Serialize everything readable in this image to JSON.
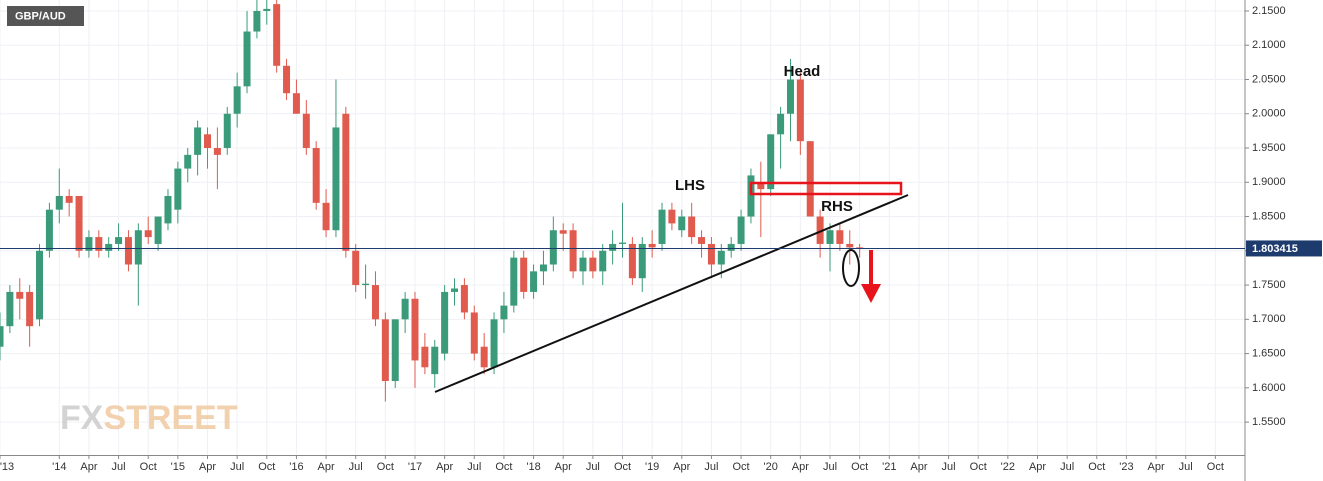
{
  "chart_data": {
    "type": "candlestick",
    "title": "GBP/AUD",
    "logo": [
      "FX",
      "STREET"
    ],
    "annotations": [
      "Head",
      "LHS",
      "RHS"
    ],
    "last_price": 1.803415,
    "up_color": "#3a9a7a",
    "down_color": "#e05a4e",
    "grid": true,
    "x": [
      "2013-07",
      "2013-08",
      "2013-09",
      "2013-10",
      "2013-11",
      "2013-12",
      "2014-01",
      "2014-02",
      "2014-03",
      "2014-04",
      "2014-05",
      "2014-06",
      "2014-07",
      "2014-08",
      "2014-09",
      "2014-10",
      "2014-11",
      "2014-12",
      "2015-01",
      "2015-02",
      "2015-03",
      "2015-04",
      "2015-05",
      "2015-06",
      "2015-07",
      "2015-08",
      "2015-09",
      "2015-10",
      "2015-11",
      "2015-12",
      "2016-01",
      "2016-02",
      "2016-03",
      "2016-04",
      "2016-05",
      "2016-06",
      "2016-07",
      "2016-08",
      "2016-09",
      "2016-10",
      "2016-11",
      "2016-12",
      "2017-01",
      "2017-02",
      "2017-03",
      "2017-04",
      "2017-05",
      "2017-06",
      "2017-07",
      "2017-08",
      "2017-09",
      "2017-10",
      "2017-11",
      "2017-12",
      "2018-01",
      "2018-02",
      "2018-03",
      "2018-04",
      "2018-05",
      "2018-06",
      "2018-07",
      "2018-08",
      "2018-09",
      "2018-10",
      "2018-11",
      "2018-12",
      "2019-01",
      "2019-02",
      "2019-03",
      "2019-04",
      "2019-05",
      "2019-06",
      "2019-07",
      "2019-08",
      "2019-09",
      "2019-10",
      "2019-11",
      "2019-12",
      "2020-01",
      "2020-02",
      "2020-03",
      "2020-04",
      "2020-05",
      "2020-06",
      "2020-07",
      "2020-08",
      "2020-09",
      "2020-10"
    ],
    "open": [
      1.66,
      1.69,
      1.74,
      1.74,
      1.7,
      1.8,
      1.86,
      1.88,
      1.88,
      1.8,
      1.82,
      1.8,
      1.81,
      1.82,
      1.78,
      1.83,
      1.81,
      1.84,
      1.86,
      1.92,
      1.94,
      1.97,
      1.95,
      1.95,
      2.0,
      2.04,
      2.12,
      2.15,
      2.16,
      2.07,
      2.03,
      2.0,
      1.95,
      1.87,
      1.83,
      2.0,
      1.8,
      1.75,
      1.75,
      1.7,
      1.61,
      1.7,
      1.73,
      1.66,
      1.62,
      1.65,
      1.74,
      1.75,
      1.71,
      1.66,
      1.63,
      1.7,
      1.72,
      1.79,
      1.74,
      1.77,
      1.78,
      1.83,
      1.83,
      1.77,
      1.79,
      1.77,
      1.8,
      1.81,
      1.81,
      1.76,
      1.81,
      1.81,
      1.86,
      1.83,
      1.85,
      1.82,
      1.81,
      1.78,
      1.8,
      1.81,
      1.85,
      1.9,
      1.89,
      1.97,
      2.0,
      2.05,
      1.96,
      1.85,
      1.81,
      1.83,
      1.81,
      1.805
    ],
    "high": [
      1.71,
      1.75,
      1.76,
      1.75,
      1.81,
      1.87,
      1.92,
      1.89,
      1.88,
      1.83,
      1.83,
      1.82,
      1.84,
      1.83,
      1.84,
      1.85,
      1.85,
      1.89,
      1.93,
      1.95,
      1.99,
      1.98,
      1.98,
      2.01,
      2.06,
      2.15,
      2.17,
      2.17,
      2.17,
      2.08,
      2.05,
      2.02,
      1.96,
      1.89,
      2.05,
      2.01,
      1.81,
      1.78,
      1.77,
      1.71,
      1.7,
      1.74,
      1.74,
      1.68,
      1.67,
      1.75,
      1.76,
      1.76,
      1.72,
      1.68,
      1.71,
      1.74,
      1.8,
      1.8,
      1.78,
      1.8,
      1.85,
      1.84,
      1.84,
      1.8,
      1.8,
      1.81,
      1.83,
      1.87,
      1.82,
      1.82,
      1.83,
      1.87,
      1.87,
      1.86,
      1.87,
      1.83,
      1.82,
      1.81,
      1.82,
      1.86,
      1.92,
      1.93,
      1.97,
      2.01,
      2.08,
      2.06,
      1.96,
      1.86,
      1.84,
      1.84,
      1.83,
      1.81
    ],
    "low": [
      1.64,
      1.68,
      1.7,
      1.66,
      1.69,
      1.79,
      1.84,
      1.85,
      1.79,
      1.79,
      1.79,
      1.79,
      1.8,
      1.77,
      1.72,
      1.81,
      1.8,
      1.83,
      1.84,
      1.9,
      1.91,
      1.92,
      1.89,
      1.94,
      1.98,
      2.03,
      2.11,
      2.13,
      2.06,
      2.02,
      2.0,
      1.94,
      1.86,
      1.82,
      1.82,
      1.79,
      1.74,
      1.73,
      1.69,
      1.58,
      1.6,
      1.68,
      1.6,
      1.62,
      1.6,
      1.64,
      1.72,
      1.7,
      1.64,
      1.62,
      1.62,
      1.68,
      1.71,
      1.73,
      1.73,
      1.75,
      1.77,
      1.8,
      1.76,
      1.75,
      1.76,
      1.75,
      1.78,
      1.79,
      1.75,
      1.74,
      1.79,
      1.8,
      1.83,
      1.82,
      1.81,
      1.79,
      1.76,
      1.76,
      1.79,
      1.8,
      1.84,
      1.82,
      1.88,
      1.92,
      1.96,
      1.94,
      1.85,
      1.79,
      1.77,
      1.8,
      1.78,
      1.79
    ],
    "close": [
      1.69,
      1.74,
      1.73,
      1.69,
      1.8,
      1.86,
      1.88,
      1.87,
      1.8,
      1.82,
      1.8,
      1.81,
      1.82,
      1.78,
      1.83,
      1.82,
      1.85,
      1.88,
      1.92,
      1.94,
      1.98,
      1.95,
      1.94,
      2.0,
      2.04,
      2.12,
      2.15,
      2.153,
      2.07,
      2.03,
      2.0,
      1.95,
      1.87,
      1.83,
      1.98,
      1.8,
      1.75,
      1.752,
      1.7,
      1.61,
      1.7,
      1.73,
      1.64,
      1.63,
      1.66,
      1.74,
      1.745,
      1.71,
      1.65,
      1.63,
      1.7,
      1.72,
      1.79,
      1.74,
      1.77,
      1.78,
      1.83,
      1.825,
      1.77,
      1.79,
      1.77,
      1.8,
      1.81,
      1.812,
      1.76,
      1.81,
      1.805,
      1.86,
      1.84,
      1.85,
      1.82,
      1.81,
      1.78,
      1.8,
      1.81,
      1.85,
      1.91,
      1.89,
      1.97,
      2.0,
      2.05,
      1.96,
      1.85,
      1.81,
      1.83,
      1.81,
      1.805,
      1.803415
    ],
    "xlim": [
      "2013-07",
      "2024-01"
    ],
    "xticks": [
      {
        "value": "2013-07",
        "label": "'13"
      },
      {
        "value": "2014-01",
        "label": "'14"
      },
      {
        "value": "2014-04",
        "label": "Apr"
      },
      {
        "value": "2014-07",
        "label": "Jul"
      },
      {
        "value": "2014-10",
        "label": "Oct"
      },
      {
        "value": "2015-01",
        "label": "'15"
      },
      {
        "value": "2015-04",
        "label": "Apr"
      },
      {
        "value": "2015-07",
        "label": "Jul"
      },
      {
        "value": "2015-10",
        "label": "Oct"
      },
      {
        "value": "2016-01",
        "label": "'16"
      },
      {
        "value": "2016-04",
        "label": "Apr"
      },
      {
        "value": "2016-07",
        "label": "Jul"
      },
      {
        "value": "2016-10",
        "label": "Oct"
      },
      {
        "value": "2017-01",
        "label": "'17"
      },
      {
        "value": "2017-04",
        "label": "Apr"
      },
      {
        "value": "2017-07",
        "label": "Jul"
      },
      {
        "value": "2017-10",
        "label": "Oct"
      },
      {
        "value": "2018-01",
        "label": "'18"
      },
      {
        "value": "2018-04",
        "label": "Apr"
      },
      {
        "value": "2018-07",
        "label": "Jul"
      },
      {
        "value": "2018-10",
        "label": "Oct"
      },
      {
        "value": "2019-01",
        "label": "'19"
      },
      {
        "value": "2019-04",
        "label": "Apr"
      },
      {
        "value": "2019-07",
        "label": "Jul"
      },
      {
        "value": "2019-10",
        "label": "Oct"
      },
      {
        "value": "2020-01",
        "label": "'20"
      },
      {
        "value": "2020-04",
        "label": "Apr"
      },
      {
        "value": "2020-07",
        "label": "Jul"
      },
      {
        "value": "2020-10",
        "label": "Oct"
      },
      {
        "value": "2021-01",
        "label": "'21"
      },
      {
        "value": "2021-04",
        "label": "Apr"
      },
      {
        "value": "2021-07",
        "label": "Jul"
      },
      {
        "value": "2021-10",
        "label": "Oct"
      },
      {
        "value": "2022-01",
        "label": "'22"
      },
      {
        "value": "2022-04",
        "label": "Apr"
      },
      {
        "value": "2022-07",
        "label": "Jul"
      },
      {
        "value": "2022-10",
        "label": "Oct"
      },
      {
        "value": "2023-01",
        "label": "'23"
      },
      {
        "value": "2023-04",
        "label": "Apr"
      },
      {
        "value": "2023-07",
        "label": "Jul"
      },
      {
        "value": "2023-10",
        "label": "Oct"
      }
    ],
    "ylim": [
      1.502,
      2.166
    ],
    "yticks": [
      {
        "value": 1.55,
        "label": "1.5500"
      },
      {
        "value": 1.6,
        "label": "1.6000"
      },
      {
        "value": 1.65,
        "label": "1.6500"
      },
      {
        "value": 1.7,
        "label": "1.7000"
      },
      {
        "value": 1.75,
        "label": "1.7500"
      },
      {
        "value": 1.8,
        "label": "1.8000"
      },
      {
        "value": 1.85,
        "label": "1.8500"
      },
      {
        "value": 1.9,
        "label": "1.9000"
      },
      {
        "value": 1.95,
        "label": "1.9500"
      },
      {
        "value": 2.0,
        "label": "2.0000"
      },
      {
        "value": 2.05,
        "label": "2.0500"
      },
      {
        "value": 2.1,
        "label": "2.1000"
      },
      {
        "value": 2.15,
        "label": "2.1500"
      }
    ]
  }
}
